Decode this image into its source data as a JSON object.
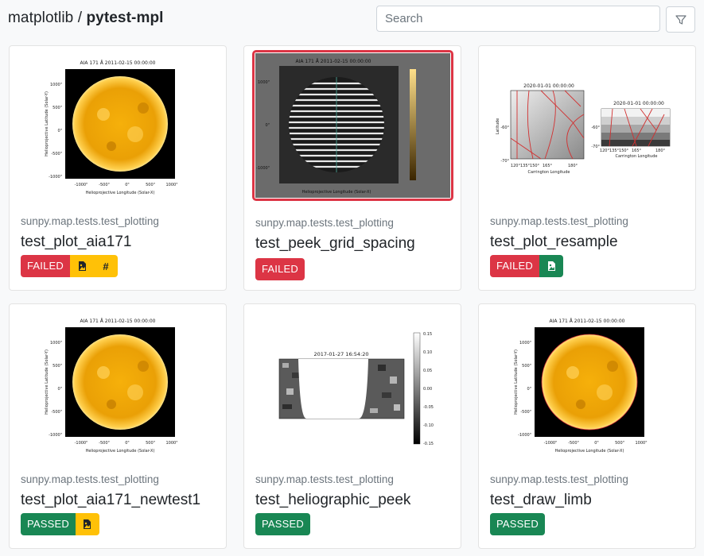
{
  "header": {
    "org": "matplotlib",
    "separator": " / ",
    "repo": "pytest-mpl"
  },
  "search": {
    "placeholder": "Search",
    "value": ""
  },
  "filter": {
    "icon": "filter-icon"
  },
  "colors": {
    "failed": "#dc3545",
    "passed": "#198754",
    "warning": "#ffc107"
  },
  "plot_text": {
    "aia_title": "AIA 171 Å 2011-02-15 00:00:00",
    "aia_ylabel": "Helioprojective Latitude (Solar-Y)",
    "aia_xlabel": "Helioprojective Longitude (Solar-X)",
    "aia_yticks": [
      "1000\"",
      "500\"",
      "0\"",
      "-500\"",
      "-1000\""
    ],
    "aia_xticks": [
      "-1000\"",
      "-500\"",
      "0\"",
      "500\"",
      "1000\""
    ],
    "resample_title": "2020-01-01 00:00:00",
    "resample_ylabel": "Latitude",
    "resample_xlabel": "Carrington Longitude",
    "resample_yticks": [
      "-60°",
      "-70°"
    ],
    "resample_xticks": [
      "120°135°150°",
      "165°",
      "180°"
    ],
    "peek_title": "2017-01-27 16:54:20",
    "peek_colorbar": [
      "0.15",
      "0.10",
      "0.05",
      "0.00",
      "-0.05",
      "-0.10",
      "-0.15"
    ]
  },
  "cards": [
    {
      "module": "sunpy.map.tests.test_plotting",
      "name": "test_plot_aia171",
      "status": "FAILED",
      "icons": [
        "image-file-icon",
        "hash-icon"
      ],
      "hash_symbol": "#"
    },
    {
      "module": "sunpy.map.tests.test_plotting",
      "name": "test_peek_grid_spacing",
      "status": "FAILED",
      "icons": []
    },
    {
      "module": "sunpy.map.tests.test_plotting",
      "name": "test_plot_resample",
      "status": "FAILED",
      "icons": [
        "image-file-icon"
      ]
    },
    {
      "module": "sunpy.map.tests.test_plotting",
      "name": "test_plot_aia171_newtest1",
      "status": "PASSED",
      "icons": [
        "image-file-icon"
      ]
    },
    {
      "module": "sunpy.map.tests.test_plotting",
      "name": "test_heliographic_peek",
      "status": "PASSED",
      "icons": []
    },
    {
      "module": "sunpy.map.tests.test_plotting",
      "name": "test_draw_limb",
      "status": "PASSED",
      "icons": []
    }
  ]
}
